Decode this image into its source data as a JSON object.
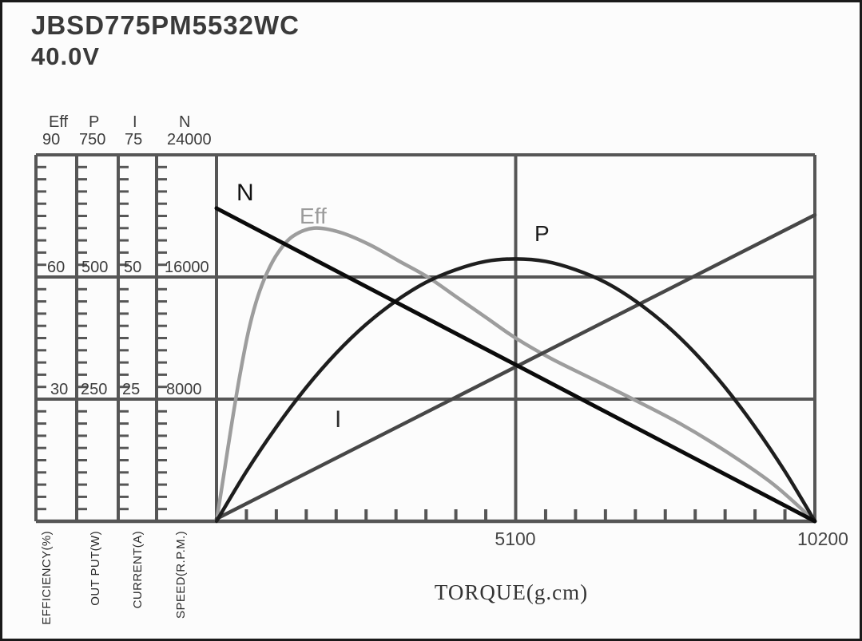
{
  "title": "JBSD775PM5532WC",
  "voltage": "40.0V",
  "colors": {
    "grid": "#565656",
    "speed_curve": "#0b0b0b",
    "power_curve": "#1e1e1e",
    "current_curve": "#474747",
    "efficiency_curve": "#9d9d9d",
    "text": "#3d3d3d"
  },
  "chart_data": {
    "type": "line",
    "title": "JBSD775PM5532WC 40.0V motor performance curves",
    "x_axis": {
      "label": "TORQUE(g.cm)",
      "min": 0,
      "max": 10200,
      "tick_labels": [
        "5100",
        "10200"
      ],
      "gridline_values": [
        5100
      ],
      "minor_tick_step": 510
    },
    "y_axes": [
      {
        "id": "eff",
        "header": "Eff",
        "top_label": "90",
        "max": 90,
        "grid_labels": [
          "60",
          "30"
        ],
        "name": "EFFICIENCY(%)"
      },
      {
        "id": "p",
        "header": "P",
        "top_label": "750",
        "max": 750,
        "grid_labels": [
          "500",
          "250"
        ],
        "name": "OUT PUT(W)"
      },
      {
        "id": "i",
        "header": "I",
        "top_label": "75",
        "max": 75,
        "grid_labels": [
          "50",
          "25"
        ],
        "name": "CURRENT(A)"
      },
      {
        "id": "n",
        "header": "N",
        "top_label": "24000",
        "max": 24000,
        "grid_labels": [
          "16000",
          "8000"
        ],
        "name": "SPEED(R.P.M.)"
      }
    ],
    "series": [
      {
        "id": "eff",
        "label": "Eff",
        "axis": "eff",
        "color": "#9d9d9d",
        "width": 4.5,
        "points": [
          [
            0,
            0
          ],
          [
            120,
            11
          ],
          [
            260,
            24
          ],
          [
            400,
            36
          ],
          [
            550,
            47
          ],
          [
            700,
            55
          ],
          [
            860,
            61
          ],
          [
            1050,
            66
          ],
          [
            1300,
            70
          ],
          [
            1660,
            72
          ],
          [
            2100,
            71
          ],
          [
            2600,
            68
          ],
          [
            3100,
            64
          ],
          [
            3600,
            60
          ],
          [
            4100,
            55
          ],
          [
            4600,
            50
          ],
          [
            5100,
            45
          ],
          [
            5700,
            40
          ],
          [
            6400,
            35
          ],
          [
            7100,
            30
          ],
          [
            7900,
            24
          ],
          [
            8700,
            17
          ],
          [
            9500,
            9
          ],
          [
            10200,
            0
          ]
        ]
      },
      {
        "id": "i",
        "label": "I",
        "axis": "i",
        "color": "#474747",
        "width": 4.5,
        "points": [
          [
            0,
            0.5
          ],
          [
            10200,
            62.7
          ]
        ]
      },
      {
        "id": "p",
        "label": "P",
        "axis": "p",
        "color": "#1e1e1e",
        "width": 4.5,
        "points": [
          [
            0,
            0
          ],
          [
            510,
            102
          ],
          [
            1020,
            193
          ],
          [
            1530,
            274
          ],
          [
            2040,
            344
          ],
          [
            2550,
            403
          ],
          [
            3060,
            451
          ],
          [
            3570,
            489
          ],
          [
            4080,
            515
          ],
          [
            4590,
            532
          ],
          [
            5100,
            537
          ],
          [
            5610,
            532
          ],
          [
            6120,
            515
          ],
          [
            6630,
            489
          ],
          [
            7140,
            451
          ],
          [
            7650,
            403
          ],
          [
            8160,
            344
          ],
          [
            8670,
            274
          ],
          [
            9180,
            193
          ],
          [
            9690,
            102
          ],
          [
            10200,
            0
          ]
        ]
      },
      {
        "id": "n",
        "label": "N",
        "axis": "n",
        "color": "#0b0b0b",
        "width": 5,
        "points": [
          [
            0,
            20500
          ],
          [
            10200,
            0
          ]
        ]
      }
    ]
  }
}
